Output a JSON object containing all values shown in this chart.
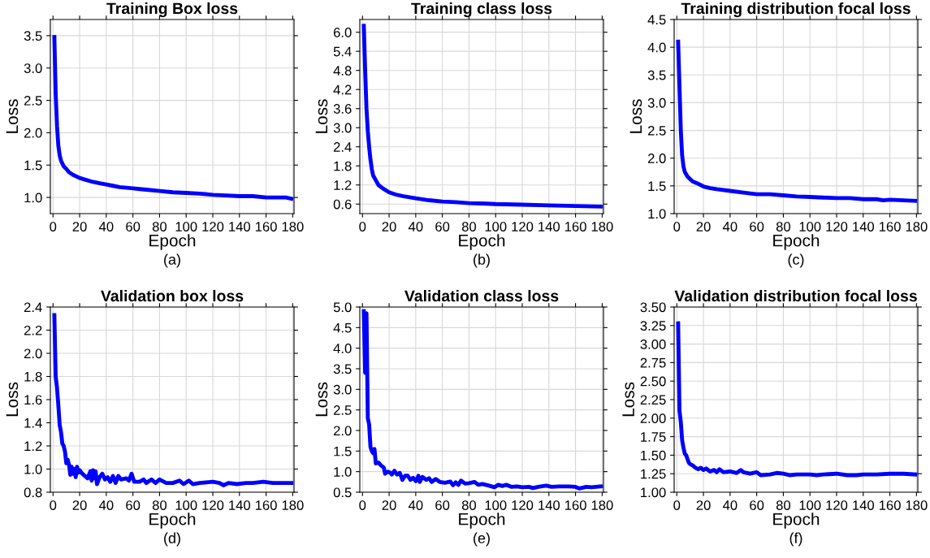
{
  "chart_data": [
    {
      "type": "line",
      "title": "Training Box loss",
      "xlabel": "Epoch",
      "ylabel": "Loss",
      "annotations": [
        "(a)"
      ],
      "grid": true,
      "xlim": [
        -2,
        181
      ],
      "xticks": [
        0,
        20,
        40,
        60,
        80,
        100,
        120,
        140,
        160,
        180
      ],
      "ylim": [
        0.75,
        3.75
      ],
      "yticks": [
        {
          "value": 1,
          "label": "1.0"
        },
        {
          "value": 1.5,
          "label": "1.5"
        },
        {
          "value": 2,
          "label": "2.0"
        },
        {
          "value": 2.5,
          "label": "2.5"
        },
        {
          "value": 3,
          "label": "3.0"
        },
        {
          "value": 3.5,
          "label": "3.5"
        }
      ],
      "series": [
        {
          "color": "#0000ff",
          "x": [
            1,
            2,
            3,
            4,
            5,
            6,
            8,
            10,
            12,
            15,
            20,
            25,
            30,
            35,
            40,
            45,
            50,
            55,
            60,
            65,
            70,
            80,
            90,
            100,
            110,
            120,
            130,
            140,
            150,
            160,
            170,
            175,
            179
          ],
          "values": [
            3.48,
            2.6,
            2.1,
            1.8,
            1.65,
            1.57,
            1.48,
            1.44,
            1.39,
            1.35,
            1.3,
            1.27,
            1.24,
            1.22,
            1.2,
            1.18,
            1.16,
            1.15,
            1.14,
            1.13,
            1.12,
            1.1,
            1.08,
            1.07,
            1.06,
            1.04,
            1.03,
            1.02,
            1.02,
            1.0,
            1.0,
            1.0,
            0.98
          ]
        }
      ]
    },
    {
      "type": "line",
      "title": "Training class loss",
      "xlabel": "Epoch",
      "ylabel": "Loss",
      "annotations": [
        "(b)"
      ],
      "grid": true,
      "xlim": [
        -2,
        181
      ],
      "xticks": [
        0,
        20,
        40,
        60,
        80,
        100,
        120,
        140,
        160,
        180
      ],
      "ylim": [
        0.3,
        6.4
      ],
      "yticks": [
        0.6,
        1.2,
        1.8,
        2.4,
        {
          "value": 3,
          "label": "3.0"
        },
        3.6,
        4.2,
        4.8,
        5.4,
        {
          "value": 6,
          "label": "6.0"
        }
      ],
      "series": [
        {
          "color": "#0000ff",
          "x": [
            1,
            2,
            3,
            4,
            5,
            6,
            7,
            8,
            10,
            12,
            15,
            20,
            25,
            30,
            40,
            50,
            60,
            70,
            80,
            90,
            100,
            120,
            140,
            160,
            179
          ],
          "values": [
            6.2,
            4.8,
            3.6,
            2.9,
            2.4,
            2.0,
            1.7,
            1.5,
            1.35,
            1.2,
            1.1,
            0.97,
            0.9,
            0.85,
            0.78,
            0.72,
            0.68,
            0.66,
            0.63,
            0.62,
            0.6,
            0.58,
            0.56,
            0.54,
            0.52
          ]
        }
      ]
    },
    {
      "type": "line",
      "title": "Training distribution focal loss",
      "xlabel": "Epoch",
      "ylabel": "Loss",
      "annotations": [
        "(c)"
      ],
      "grid": true,
      "xlim": [
        -2,
        181
      ],
      "xticks": [
        0,
        20,
        40,
        60,
        80,
        100,
        120,
        140,
        160,
        180
      ],
      "ylim": [
        1.0,
        4.5
      ],
      "yticks": [
        {
          "value": 1,
          "label": "1.0"
        },
        {
          "value": 1.5,
          "label": "1.5"
        },
        {
          "value": 2,
          "label": "2.0"
        },
        {
          "value": 2.5,
          "label": "2.5"
        },
        {
          "value": 3,
          "label": "3.0"
        },
        {
          "value": 3.5,
          "label": "3.5"
        },
        {
          "value": 4,
          "label": "4.0"
        },
        {
          "value": 4.5,
          "label": "4.5"
        }
      ],
      "series": [
        {
          "color": "#0000ff",
          "x": [
            1,
            2,
            3,
            4,
            5,
            6,
            8,
            10,
            12,
            15,
            20,
            25,
            30,
            40,
            50,
            60,
            70,
            80,
            90,
            100,
            110,
            120,
            130,
            140,
            150,
            155,
            160,
            170,
            179
          ],
          "values": [
            4.1,
            3.3,
            2.5,
            2.05,
            1.85,
            1.75,
            1.67,
            1.62,
            1.58,
            1.55,
            1.49,
            1.46,
            1.44,
            1.41,
            1.38,
            1.35,
            1.35,
            1.33,
            1.31,
            1.3,
            1.29,
            1.28,
            1.28,
            1.26,
            1.26,
            1.24,
            1.25,
            1.24,
            1.23
          ]
        }
      ]
    },
    {
      "type": "line",
      "title": "Validation box loss",
      "xlabel": "Epoch",
      "ylabel": "Loss",
      "annotations": [
        "(d)"
      ],
      "grid": true,
      "xlim": [
        -2,
        181
      ],
      "xticks": [
        0,
        20,
        40,
        60,
        80,
        100,
        120,
        140,
        160,
        180
      ],
      "ylim": [
        0.8,
        2.4
      ],
      "yticks": [
        0.8,
        {
          "value": 1,
          "label": "1.0"
        },
        1.2,
        1.4,
        1.6,
        1.8,
        {
          "value": 2,
          "label": "2.0"
        },
        2.2,
        2.4
      ],
      "series": [
        {
          "color": "#0000ff",
          "x": [
            1,
            2,
            3,
            4,
            5,
            6,
            7,
            8,
            9,
            10,
            11,
            12,
            13,
            14,
            15,
            16,
            17,
            18,
            19,
            20,
            22,
            24,
            26,
            28,
            29,
            30,
            31,
            32,
            33,
            35,
            37,
            39,
            41,
            43,
            45,
            47,
            49,
            51,
            55,
            57,
            59,
            61,
            65,
            68,
            70,
            74,
            77,
            80,
            85,
            90,
            95,
            98,
            102,
            105,
            110,
            120,
            125,
            128,
            132,
            138,
            145,
            150,
            158,
            165,
            172,
            179
          ],
          "values": [
            2.33,
            1.8,
            1.7,
            1.55,
            1.38,
            1.32,
            1.22,
            1.2,
            1.15,
            1.05,
            1.08,
            1.04,
            0.95,
            1.02,
            0.96,
            1.0,
            0.93,
            1.02,
            0.97,
            0.99,
            0.96,
            0.94,
            0.92,
            0.98,
            0.9,
            0.99,
            0.92,
            0.98,
            0.87,
            0.93,
            0.96,
            0.91,
            0.93,
            0.89,
            0.94,
            0.88,
            0.94,
            0.91,
            0.92,
            0.9,
            0.96,
            0.89,
            0.89,
            0.91,
            0.88,
            0.91,
            0.88,
            0.91,
            0.88,
            0.88,
            0.9,
            0.87,
            0.9,
            0.87,
            0.88,
            0.89,
            0.88,
            0.86,
            0.88,
            0.87,
            0.88,
            0.88,
            0.89,
            0.88,
            0.88,
            0.88
          ]
        }
      ]
    },
    {
      "type": "line",
      "title": "Validation class loss",
      "xlabel": "Epoch",
      "ylabel": "Loss",
      "annotations": [
        "(e)"
      ],
      "grid": true,
      "xlim": [
        -2,
        181
      ],
      "xticks": [
        0,
        20,
        40,
        60,
        80,
        100,
        120,
        140,
        160,
        180
      ],
      "ylim": [
        0.5,
        5.0
      ],
      "yticks": [
        0.5,
        {
          "value": 1,
          "label": "1.0"
        },
        1.5,
        {
          "value": 2,
          "label": "2.0"
        },
        2.5,
        {
          "value": 3,
          "label": "3.0"
        },
        3.5,
        {
          "value": 4,
          "label": "4.0"
        },
        4.5,
        {
          "value": 5,
          "label": "5.0"
        }
      ],
      "series": [
        {
          "color": "#0000ff",
          "x": [
            1,
            2,
            3,
            4,
            5,
            6,
            7,
            8,
            9,
            10,
            12,
            14,
            16,
            17,
            19,
            21,
            22,
            24,
            26,
            28,
            30,
            32,
            34,
            36,
            38,
            40,
            42,
            43,
            45,
            48,
            50,
            52,
            55,
            58,
            62,
            66,
            68,
            70,
            72,
            74,
            77,
            80,
            84,
            87,
            90,
            95,
            99,
            102,
            105,
            108,
            112,
            116,
            120,
            125,
            128,
            132,
            138,
            142,
            148,
            155,
            160,
            163,
            168,
            172,
            179
          ],
          "values": [
            4.9,
            3.4,
            4.85,
            2.3,
            2.15,
            1.6,
            1.5,
            1.45,
            1.55,
            1.2,
            1.22,
            1.15,
            1.1,
            0.95,
            1.0,
            0.97,
            0.93,
            1.02,
            0.93,
            0.97,
            0.8,
            0.9,
            0.9,
            0.8,
            0.85,
            0.77,
            0.9,
            0.75,
            0.87,
            0.8,
            0.84,
            0.75,
            0.82,
            0.75,
            0.73,
            0.76,
            0.67,
            0.74,
            0.68,
            0.78,
            0.71,
            0.72,
            0.75,
            0.68,
            0.7,
            0.66,
            0.62,
            0.68,
            0.65,
            0.68,
            0.63,
            0.64,
            0.62,
            0.63,
            0.6,
            0.63,
            0.66,
            0.63,
            0.64,
            0.64,
            0.63,
            0.59,
            0.63,
            0.62,
            0.64
          ]
        }
      ]
    },
    {
      "type": "line",
      "title": "Validation distribution focal loss",
      "xlabel": "Epoch",
      "ylabel": "Loss",
      "annotations": [
        "(f)"
      ],
      "grid": true,
      "xlim": [
        -2,
        181
      ],
      "xticks": [
        0,
        20,
        40,
        60,
        80,
        100,
        120,
        140,
        160,
        180
      ],
      "ylim": [
        1.0,
        3.5
      ],
      "yticks": [
        {
          "value": 1,
          "label": "1.00"
        },
        {
          "value": 1.25,
          "label": "1.25"
        },
        {
          "value": 1.5,
          "label": "1.50"
        },
        {
          "value": 1.75,
          "label": "1.75"
        },
        {
          "value": 2,
          "label": "2.00"
        },
        {
          "value": 2.25,
          "label": "2.25"
        },
        {
          "value": 2.5,
          "label": "2.50"
        },
        {
          "value": 2.75,
          "label": "2.75"
        },
        {
          "value": 3,
          "label": "3.00"
        },
        {
          "value": 3.25,
          "label": "3.25"
        },
        {
          "value": 3.5,
          "label": "3.50"
        }
      ],
      "series": [
        {
          "color": "#0000ff",
          "x": [
            1,
            2,
            3,
            4,
            5,
            6,
            7,
            8,
            9,
            10,
            12,
            14,
            16,
            18,
            20,
            22,
            25,
            28,
            30,
            32,
            35,
            40,
            45,
            48,
            50,
            55,
            60,
            63,
            70,
            75,
            80,
            85,
            90,
            100,
            105,
            110,
            120,
            128,
            135,
            140,
            150,
            160,
            170,
            179
          ],
          "values": [
            3.28,
            2.1,
            1.95,
            1.7,
            1.6,
            1.52,
            1.5,
            1.45,
            1.4,
            1.38,
            1.36,
            1.33,
            1.31,
            1.33,
            1.3,
            1.32,
            1.28,
            1.3,
            1.27,
            1.31,
            1.27,
            1.28,
            1.26,
            1.3,
            1.27,
            1.25,
            1.27,
            1.23,
            1.24,
            1.26,
            1.25,
            1.23,
            1.24,
            1.24,
            1.23,
            1.24,
            1.25,
            1.23,
            1.23,
            1.24,
            1.24,
            1.25,
            1.25,
            1.24
          ]
        }
      ]
    }
  ]
}
